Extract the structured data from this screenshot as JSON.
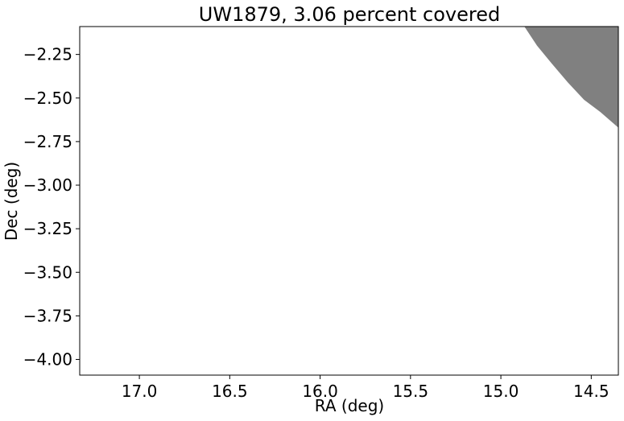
{
  "chart_data": {
    "type": "area",
    "title": "UW1879, 3.06 percent covered",
    "xlabel": "RA (deg)",
    "ylabel": "Dec (deg)",
    "x_inverted": true,
    "xlim": [
      17.33,
      14.35
    ],
    "ylim": [
      -4.09,
      -2.09
    ],
    "xticks": [
      17.0,
      16.5,
      16.0,
      15.5,
      15.0,
      14.5
    ],
    "xtick_labels": [
      "17.0",
      "16.5",
      "16.0",
      "15.5",
      "15.0",
      "14.5"
    ],
    "yticks": [
      -2.25,
      -2.5,
      -2.75,
      -3.0,
      -3.25,
      -3.5,
      -3.75,
      -4.0
    ],
    "ytick_labels": [
      "−2.25",
      "−2.50",
      "−2.75",
      "−3.00",
      "−3.25",
      "−3.50",
      "−3.75",
      "−4.00"
    ],
    "grid": false,
    "fill_color": "#808080",
    "covered_region": {
      "boundary": [
        {
          "ra": 14.87,
          "dec": -2.09
        },
        {
          "ra": 14.8,
          "dec": -2.2
        },
        {
          "ra": 14.72,
          "dec": -2.3
        },
        {
          "ra": 14.63,
          "dec": -2.41
        },
        {
          "ra": 14.54,
          "dec": -2.51
        },
        {
          "ra": 14.45,
          "dec": -2.58
        },
        {
          "ra": 14.35,
          "dec": -2.67
        }
      ]
    }
  }
}
